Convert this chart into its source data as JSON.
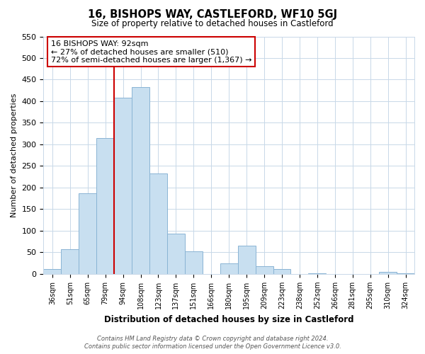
{
  "title": "16, BISHOPS WAY, CASTLEFORD, WF10 5GJ",
  "subtitle": "Size of property relative to detached houses in Castleford",
  "xlabel": "Distribution of detached houses by size in Castleford",
  "ylabel": "Number of detached properties",
  "bar_color": "#c8dff0",
  "bar_edge_color": "#8ab4d4",
  "categories": [
    "36sqm",
    "51sqm",
    "65sqm",
    "79sqm",
    "94sqm",
    "108sqm",
    "123sqm",
    "137sqm",
    "151sqm",
    "166sqm",
    "180sqm",
    "195sqm",
    "209sqm",
    "223sqm",
    "238sqm",
    "252sqm",
    "266sqm",
    "281sqm",
    "295sqm",
    "310sqm",
    "324sqm"
  ],
  "values": [
    12,
    58,
    187,
    315,
    408,
    432,
    232,
    93,
    52,
    0,
    25,
    65,
    18,
    12,
    0,
    2,
    0,
    0,
    0,
    5,
    2
  ],
  "ylim": [
    0,
    550
  ],
  "yticks": [
    0,
    50,
    100,
    150,
    200,
    250,
    300,
    350,
    400,
    450,
    500,
    550
  ],
  "vline_color": "#cc0000",
  "vline_x_index": 3.5,
  "annotation_title": "16 BISHOPS WAY: 92sqm",
  "annotation_line1": "← 27% of detached houses are smaller (510)",
  "annotation_line2": "72% of semi-detached houses are larger (1,367) →",
  "annotation_box_color": "#ffffff",
  "annotation_box_edge": "#cc0000",
  "footer1": "Contains HM Land Registry data © Crown copyright and database right 2024.",
  "footer2": "Contains public sector information licensed under the Open Government Licence v3.0.",
  "bg_color": "#ffffff",
  "grid_color": "#c8d8e8"
}
